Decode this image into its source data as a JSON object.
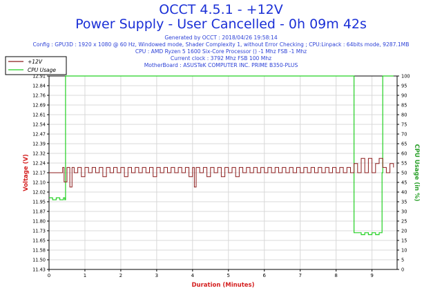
{
  "header": {
    "title": "OCCT 4.5.1 - +12V",
    "subtitle": "Power Supply - User Cancelled - 0h 09m 42s",
    "info": [
      "Generated by OCCT : 2018/04/26 19:58:14",
      "Config : GPU3D : 1920 x 1080 @ 60 Hz, Windowed mode, Shader Complexity 1, without Error Checking ; CPU:Linpack : 64bits mode, 9287.1MB",
      "CPU : AMD Ryzen 5 1600 Six-Core Processor () -1 Mhz FSB -1 Mhz",
      "Current clock : 3792 Mhz FSB 100 Mhz",
      "MotherBoard : ASUSTeK COMPUTER INC. PRIME B350-PLUS"
    ]
  },
  "colors": {
    "voltage": "#8b1a1a",
    "cpu": "#22d022",
    "axis_label": "#d42020",
    "cpu_axis_label": "#2aa02a",
    "title": "#1a2fd6",
    "grid": "#d8d8d8"
  },
  "chart_data": {
    "type": "line",
    "xlabel": "Duration (Minutes)",
    "ylabel": "Voltage (V)",
    "y2label": "CPU Usage (in %)",
    "xlim": [
      0,
      9.7
    ],
    "ylim": [
      11.43,
      12.91
    ],
    "y2lim": [
      0,
      100
    ],
    "x_ticks": [
      "0",
      "1",
      "2",
      "3",
      "4",
      "5",
      "6",
      "7",
      "8",
      "9"
    ],
    "y_ticks": [
      "12.91",
      "12.84",
      "12.76",
      "12.69",
      "12.61",
      "12.54",
      "12.47",
      "12.39",
      "12.32",
      "12.24",
      "12.17",
      "12.10",
      "12.02",
      "11.95",
      "11.87",
      "11.80",
      "11.73",
      "11.65",
      "11.58",
      "11.50",
      "11.43"
    ],
    "y2_ticks": [
      "100",
      "95",
      "90",
      "85",
      "80",
      "75",
      "70",
      "65",
      "60",
      "55",
      "50",
      "45",
      "40",
      "35",
      "30",
      "25",
      "20",
      "15",
      "10",
      "5",
      "0"
    ],
    "grid": true,
    "legend_position": "top-left",
    "series": [
      {
        "name": "+12V",
        "axis": "left",
        "x": [
          0,
          0.1,
          0.2,
          0.3,
          0.38,
          0.42,
          0.5,
          0.58,
          0.64,
          0.7,
          0.8,
          0.9,
          1.0,
          1.1,
          1.2,
          1.3,
          1.4,
          1.5,
          1.6,
          1.7,
          1.8,
          1.9,
          2.0,
          2.1,
          2.2,
          2.3,
          2.4,
          2.5,
          2.6,
          2.7,
          2.8,
          2.9,
          3.0,
          3.1,
          3.2,
          3.3,
          3.4,
          3.5,
          3.6,
          3.7,
          3.8,
          3.9,
          4.0,
          4.05,
          4.1,
          4.2,
          4.3,
          4.4,
          4.5,
          4.6,
          4.7,
          4.8,
          4.9,
          5.0,
          5.1,
          5.2,
          5.3,
          5.4,
          5.5,
          5.6,
          5.7,
          5.8,
          5.9,
          6.0,
          6.1,
          6.2,
          6.3,
          6.4,
          6.5,
          6.6,
          6.7,
          6.8,
          6.9,
          7.0,
          7.1,
          7.2,
          7.3,
          7.4,
          7.5,
          7.6,
          7.7,
          7.8,
          7.9,
          8.0,
          8.1,
          8.2,
          8.3,
          8.4,
          8.5,
          8.6,
          8.7,
          8.8,
          8.9,
          9.0,
          9.1,
          9.2,
          9.3,
          9.4,
          9.5,
          9.6
        ],
        "values": [
          12.17,
          12.17,
          12.17,
          12.17,
          12.21,
          12.1,
          12.21,
          12.06,
          12.21,
          12.17,
          12.21,
          12.14,
          12.21,
          12.17,
          12.21,
          12.17,
          12.21,
          12.14,
          12.21,
          12.17,
          12.21,
          12.17,
          12.21,
          12.14,
          12.21,
          12.17,
          12.21,
          12.17,
          12.21,
          12.17,
          12.21,
          12.14,
          12.21,
          12.17,
          12.21,
          12.17,
          12.21,
          12.17,
          12.21,
          12.17,
          12.21,
          12.14,
          12.21,
          12.06,
          12.21,
          12.17,
          12.21,
          12.14,
          12.21,
          12.17,
          12.21,
          12.14,
          12.21,
          12.17,
          12.21,
          12.14,
          12.21,
          12.17,
          12.21,
          12.17,
          12.21,
          12.17,
          12.21,
          12.17,
          12.21,
          12.17,
          12.21,
          12.17,
          12.21,
          12.17,
          12.21,
          12.17,
          12.21,
          12.17,
          12.21,
          12.17,
          12.21,
          12.17,
          12.21,
          12.17,
          12.21,
          12.17,
          12.21,
          12.17,
          12.21,
          12.17,
          12.21,
          12.17,
          12.24,
          12.17,
          12.28,
          12.17,
          12.28,
          12.17,
          12.24,
          12.28,
          12.21,
          12.17,
          12.24,
          12.21
        ]
      },
      {
        "name": "CPU Usage",
        "axis": "right",
        "x": [
          0,
          0.1,
          0.2,
          0.3,
          0.4,
          0.44,
          0.46,
          0.6,
          1.0,
          2.0,
          3.0,
          4.0,
          5.0,
          6.0,
          7.0,
          8.0,
          8.45,
          8.48,
          8.5,
          8.6,
          8.7,
          8.8,
          8.9,
          9.0,
          9.1,
          9.2,
          9.25,
          9.28,
          9.3,
          9.5,
          9.6
        ],
        "values": [
          37,
          36,
          37,
          36,
          37,
          36,
          100,
          100,
          100,
          100,
          100,
          100,
          100,
          100,
          100,
          100,
          100,
          100,
          19,
          19,
          18,
          19,
          18,
          19,
          18,
          19,
          19,
          50,
          100,
          100,
          100
        ]
      }
    ]
  }
}
